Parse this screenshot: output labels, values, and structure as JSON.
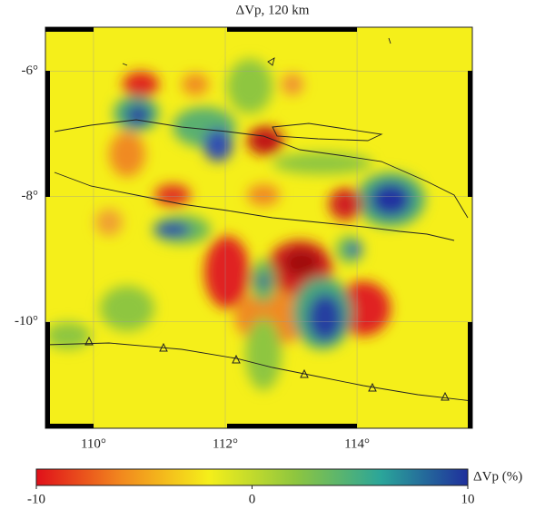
{
  "map": {
    "title": "ΔVp, 120 km",
    "xlim": [
      109.27,
      115.75
    ],
    "ylim": [
      -11.7,
      -5.3
    ],
    "xticks": [
      {
        "value": 110,
        "label": "110°"
      },
      {
        "value": 112,
        "label": "112°"
      },
      {
        "value": 114,
        "label": "114°"
      }
    ],
    "yticks": [
      {
        "value": -6,
        "label": "-6°"
      },
      {
        "value": -8,
        "label": "-8°"
      },
      {
        "value": -10,
        "label": "-10°"
      }
    ],
    "colorbar": {
      "label": "ΔVp (%)",
      "lim": [
        -10,
        10
      ],
      "ticks": [
        -10,
        0,
        10
      ],
      "colors": [
        "#e0101a",
        "#f28a1e",
        "#f5ef1a",
        "#8ec63f",
        "#2aa59a",
        "#1f2f9c"
      ]
    }
  }
}
